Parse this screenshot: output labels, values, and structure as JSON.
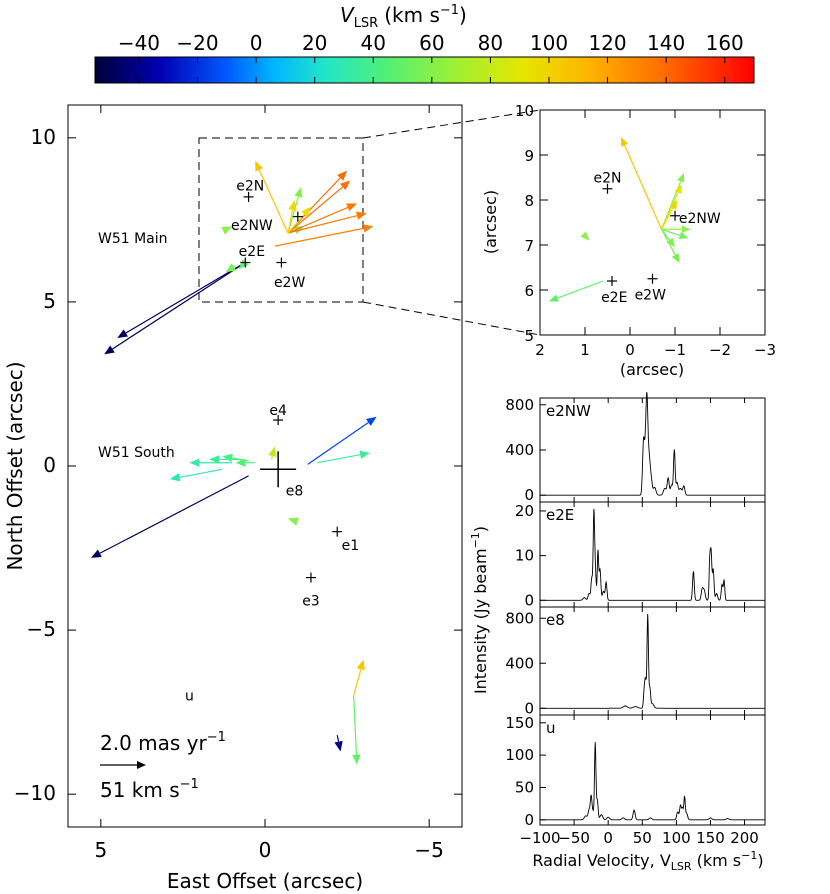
{
  "chart_data": [
    {
      "id": "colorbar",
      "type": "colorbar",
      "title": "V",
      "title_sub": "LSR",
      "title_units": "(km s",
      "title_units_sup": "−1",
      "title_units_end": ")",
      "range": [
        -55,
        170
      ],
      "tick_values": [
        -40,
        -20,
        0,
        20,
        40,
        60,
        80,
        100,
        120,
        140,
        160
      ],
      "tick_labels": [
        "−40",
        "−20",
        "0",
        "20",
        "40",
        "60",
        "80",
        "100",
        "120",
        "140",
        "160"
      ]
    },
    {
      "id": "main",
      "type": "vector",
      "xlabel": "East Offset (arcsec)",
      "ylabel": "North Offset (arcsec)",
      "xlim": [
        6,
        -6
      ],
      "ylim": [
        -11,
        11
      ],
      "x_ticks": [
        5,
        0,
        -5
      ],
      "x_tick_labels": [
        "5",
        "0",
        "−5"
      ],
      "y_ticks": [
        10,
        5,
        0,
        -5,
        -10
      ],
      "y_tick_labels": [
        "10",
        "5",
        "0",
        "−5",
        "−10"
      ],
      "zoom_box": {
        "x": [
          2,
          -3
        ],
        "y": [
          5,
          10
        ]
      },
      "region_labels": [
        {
          "text": "W51 Main",
          "x": 5.0,
          "y": 6.9
        },
        {
          "text": "W51 South",
          "x": 5.0,
          "y": 0.4
        }
      ],
      "sources": [
        {
          "name": "e2N",
          "x": 0.5,
          "y": 8.2,
          "label": "e2N",
          "lx": 0.45,
          "ly": 8.55
        },
        {
          "name": "e2NW",
          "x": -1.0,
          "y": 7.6,
          "label": "e2NW",
          "lx": 0.4,
          "ly": 7.35
        },
        {
          "name": "e2E",
          "x": 0.6,
          "y": 6.2,
          "label": "e2E",
          "lx": 0.4,
          "ly": 6.55
        },
        {
          "name": "e2W",
          "x": -0.5,
          "y": 6.2,
          "label": "e2W",
          "lx": -0.75,
          "ly": 5.6
        },
        {
          "name": "e4",
          "x": -0.4,
          "y": 1.4,
          "label": "e4",
          "lx": -0.4,
          "ly": 1.7
        },
        {
          "name": "e8",
          "x": -0.4,
          "y": -0.1,
          "label": "e8",
          "lx": -0.9,
          "ly": -0.75,
          "big": true
        },
        {
          "name": "e1",
          "x": -2.2,
          "y": -2.0,
          "label": "e1",
          "lx": -2.6,
          "ly": -2.4
        },
        {
          "name": "e3",
          "x": -1.4,
          "y": -3.4,
          "label": "e3",
          "lx": -1.4,
          "ly": -4.1
        },
        {
          "name": "u",
          "x": null,
          "y": null,
          "label": "u",
          "lx": 2.3,
          "ly": -7.0
        }
      ],
      "vectors": [
        {
          "x0": 0.6,
          "y0": 6.2,
          "x1": 4.5,
          "y1": 3.9,
          "v": -50
        },
        {
          "x0": 0.6,
          "y0": 6.2,
          "x1": 4.9,
          "y1": 3.4,
          "v": -48
        },
        {
          "x0": 0.6,
          "y0": 6.2,
          "x1": 0.8,
          "y1": 6.0,
          "v": 50
        },
        {
          "x0": 0.9,
          "y0": 6.1,
          "x1": 1.2,
          "y1": 5.9,
          "v": 55
        },
        {
          "x0": 1.2,
          "y0": 7.2,
          "x1": 1.0,
          "y1": 7.3,
          "v": 62
        },
        {
          "x0": -0.7,
          "y0": 7.1,
          "x1": 0.3,
          "y1": 9.3,
          "v": 105
        },
        {
          "x0": -0.7,
          "y0": 7.1,
          "x1": -1.1,
          "y1": 8.5,
          "v": 60
        },
        {
          "x0": -0.7,
          "y0": 7.1,
          "x1": -1.2,
          "y1": 7.3,
          "v": 55
        },
        {
          "x0": -0.7,
          "y0": 7.1,
          "x1": -2.5,
          "y1": 9.0,
          "v": 140
        },
        {
          "x0": -0.7,
          "y0": 7.1,
          "x1": -2.6,
          "y1": 8.7,
          "v": 138
        },
        {
          "x0": -0.7,
          "y0": 7.1,
          "x1": -2.8,
          "y1": 8.0,
          "v": 136
        },
        {
          "x0": -0.7,
          "y0": 7.1,
          "x1": -3.1,
          "y1": 7.7,
          "v": 135
        },
        {
          "x0": -0.3,
          "y0": 6.7,
          "x1": -3.3,
          "y1": 7.3,
          "v": 132
        },
        {
          "x0": -0.7,
          "y0": 7.1,
          "x1": -1.4,
          "y1": 7.9,
          "v": 95
        },
        {
          "x0": -0.7,
          "y0": 7.1,
          "x1": -0.9,
          "y1": 8.1,
          "v": 98
        },
        {
          "x0": 1.3,
          "y0": -0.1,
          "x1": 2.9,
          "y1": -0.4,
          "v": 28
        },
        {
          "x0": 1.0,
          "y0": 0.1,
          "x1": 2.3,
          "y1": 0.1,
          "v": 32
        },
        {
          "x0": 0.7,
          "y0": 0.2,
          "x1": 1.7,
          "y1": 0.2,
          "v": 36
        },
        {
          "x0": 0.5,
          "y0": 0.15,
          "x1": 1.3,
          "y1": 0.3,
          "v": 40
        },
        {
          "x0": 0.3,
          "y0": 0.1,
          "x1": 0.9,
          "y1": 0.1,
          "v": 45
        },
        {
          "x0": -0.2,
          "y0": 0.2,
          "x1": -0.3,
          "y1": 0.6,
          "v": 78
        },
        {
          "x0": -1.3,
          "y0": 0.05,
          "x1": -3.4,
          "y1": 1.5,
          "v": -15
        },
        {
          "x0": -1.6,
          "y0": 0.1,
          "x1": -3.2,
          "y1": 0.4,
          "v": 35
        },
        {
          "x0": 0.5,
          "y0": -0.3,
          "x1": 5.3,
          "y1": -2.8,
          "v": -48
        },
        {
          "x0": -1.0,
          "y0": -1.7,
          "x1": -0.7,
          "y1": -1.6,
          "v": 60
        },
        {
          "x0": -2.7,
          "y0": -7.0,
          "x1": -3.0,
          "y1": -5.9,
          "v": 105
        },
        {
          "x0": -2.7,
          "y0": -7.0,
          "x1": -2.8,
          "y1": -9.1,
          "v": 50
        },
        {
          "x0": -2.2,
          "y0": -8.2,
          "x1": -2.3,
          "y1": -8.7,
          "v": -42
        }
      ],
      "scale_legend": {
        "line1": "2.0 mas yr",
        "line1_sup": "−1",
        "line2": "51 km s",
        "line2_sup": "−1"
      }
    },
    {
      "id": "zoom",
      "type": "vector",
      "xlabel": "(arcsec)",
      "ylabel": "(arcsec)",
      "xlim": [
        2,
        -3
      ],
      "ylim": [
        5,
        10
      ],
      "x_ticks": [
        2,
        1,
        0,
        -1,
        -2,
        -3
      ],
      "x_tick_labels": [
        "2",
        "1",
        "0",
        "−1",
        "−2",
        "−3"
      ],
      "y_ticks": [
        5,
        6,
        7,
        8,
        9,
        10
      ],
      "y_tick_labels": [
        "5",
        "6",
        "7",
        "8",
        "9",
        "10"
      ],
      "sources": [
        {
          "name": "e2N",
          "x": 0.5,
          "y": 8.25,
          "label": "e2N",
          "lx": 0.5,
          "ly": 8.5
        },
        {
          "name": "e2NW",
          "x": -1.0,
          "y": 7.65,
          "label": "e2NW",
          "lx": -1.55,
          "ly": 7.6
        },
        {
          "name": "e2E",
          "x": 0.4,
          "y": 6.2,
          "label": "e2E",
          "lx": 0.35,
          "ly": 5.85
        },
        {
          "name": "e2W",
          "x": -0.5,
          "y": 6.25,
          "label": "e2W",
          "lx": -0.45,
          "ly": 5.9
        }
      ],
      "vectors": [
        {
          "x0": -0.7,
          "y0": 7.35,
          "x1": 0.2,
          "y1": 9.4,
          "v": 105
        },
        {
          "x0": -0.7,
          "y0": 7.35,
          "x1": -1.2,
          "y1": 8.6,
          "v": 60
        },
        {
          "x0": -0.7,
          "y0": 7.35,
          "x1": -1.15,
          "y1": 8.35,
          "v": 90
        },
        {
          "x0": -0.7,
          "y0": 7.35,
          "x1": -1.05,
          "y1": 8.0,
          "v": 98
        },
        {
          "x0": -0.7,
          "y0": 7.35,
          "x1": -1.3,
          "y1": 7.15,
          "v": 55
        },
        {
          "x0": -0.7,
          "y0": 7.35,
          "x1": -1.0,
          "y1": 6.95,
          "v": 58
        },
        {
          "x0": -0.7,
          "y0": 7.35,
          "x1": -1.1,
          "y1": 6.6,
          "v": 56
        },
        {
          "x0": -0.7,
          "y0": 7.35,
          "x1": -1.35,
          "y1": 7.35,
          "v": 62
        },
        {
          "x0": 1.0,
          "y0": 7.2,
          "x1": 0.9,
          "y1": 7.1,
          "v": 62
        },
        {
          "x0": 0.6,
          "y0": 6.2,
          "x1": 1.8,
          "y1": 5.75,
          "v": 48
        }
      ]
    },
    {
      "id": "spectra",
      "type": "line",
      "xlabel": "Radial Velocity, V",
      "xlabel_sub": "LSR",
      "xlabel_units": " (km s",
      "xlabel_units_sup": "−1",
      "xlabel_units_end": ")",
      "ylabel": "Intensity (Jy beam",
      "ylabel_sup": "−1",
      "ylabel_end": ")",
      "xlim": [
        -100,
        230
      ],
      "x_ticks": [
        -100,
        -50,
        0,
        50,
        100,
        150,
        200
      ],
      "x_tick_labels": [
        "−100",
        "−50",
        "0",
        "50",
        "100",
        "150",
        "200"
      ],
      "panels": [
        {
          "name": "e2NW",
          "ylim": [
            -60,
            860
          ],
          "y_ticks": [
            0,
            400,
            800
          ],
          "y_tick_labels": [
            "0",
            "400",
            "800"
          ],
          "peaks": [
            [
              52,
              500,
              1.5
            ],
            [
              55,
              360,
              1.2
            ],
            [
              57,
              770,
              1.3
            ],
            [
              60,
              320,
              1.5
            ],
            [
              63,
              140,
              1.5
            ],
            [
              68,
              70,
              2
            ],
            [
              83,
              60,
              2
            ],
            [
              88,
              150,
              1.5
            ],
            [
              93,
              90,
              1.5
            ],
            [
              97,
              400,
              1.2
            ],
            [
              101,
              110,
              1.5
            ],
            [
              106,
              60,
              2
            ],
            [
              111,
              80,
              1.5
            ]
          ]
        },
        {
          "name": "e2E",
          "ylim": [
            -1.5,
            22
          ],
          "y_ticks": [
            0,
            10,
            20
          ],
          "y_tick_labels": [
            "0",
            "10",
            "20"
          ],
          "peaks": [
            [
              -35,
              0.6,
              2
            ],
            [
              -28,
              1.5,
              1.5
            ],
            [
              -24,
              5,
              1.2
            ],
            [
              -21,
              18.5,
              1.0
            ],
            [
              -19,
              7,
              1.2
            ],
            [
              -15,
              11,
              1.0
            ],
            [
              -12,
              7,
              1.2
            ],
            [
              -7,
              2,
              1.5
            ],
            [
              -3,
              4,
              1.2
            ],
            [
              125,
              6.5,
              1.2
            ],
            [
              138,
              2.5,
              1.5
            ],
            [
              141,
              2,
              1.5
            ],
            [
              149,
              9,
              1.0
            ],
            [
              151,
              10,
              1.0
            ],
            [
              154,
              7,
              1.2
            ],
            [
              159,
              1.5,
              1.5
            ],
            [
              167,
              3.5,
              1.2
            ],
            [
              170,
              4.5,
              1.0
            ]
          ]
        },
        {
          "name": "e8",
          "ylim": [
            -60,
            900
          ],
          "y_ticks": [
            0,
            400,
            800
          ],
          "y_tick_labels": [
            "0",
            "400",
            "800"
          ],
          "peaks": [
            [
              25,
              20,
              3
            ],
            [
              40,
              15,
              3
            ],
            [
              53,
              150,
              1.2
            ],
            [
              55,
              220,
              1.2
            ],
            [
              58,
              820,
              1.0
            ],
            [
              61,
              180,
              1.2
            ],
            [
              65,
              40,
              2
            ]
          ]
        },
        {
          "name": "u",
          "ylim": [
            -8,
            162
          ],
          "y_ticks": [
            0,
            50,
            100,
            150
          ],
          "y_tick_labels": [
            "0",
            "50",
            "100",
            "150"
          ],
          "peaks": [
            [
              -33,
              6,
              2
            ],
            [
              -28,
              15,
              1.5
            ],
            [
              -25,
              35,
              1.2
            ],
            [
              -22,
              12,
              1.5
            ],
            [
              -19,
              117,
              1.0
            ],
            [
              -16,
              30,
              1.2
            ],
            [
              -10,
              8,
              2
            ],
            [
              0,
              4,
              2
            ],
            [
              22,
              3,
              2
            ],
            [
              38,
              15,
              1.5
            ],
            [
              62,
              3,
              2
            ],
            [
              102,
              12,
              1.5
            ],
            [
              106,
              22,
              1.2
            ],
            [
              109,
              18,
              1.2
            ],
            [
              112,
              35,
              1.0
            ],
            [
              115,
              10,
              1.5
            ],
            [
              150,
              3,
              2
            ],
            [
              175,
              2,
              2
            ]
          ]
        }
      ]
    }
  ]
}
